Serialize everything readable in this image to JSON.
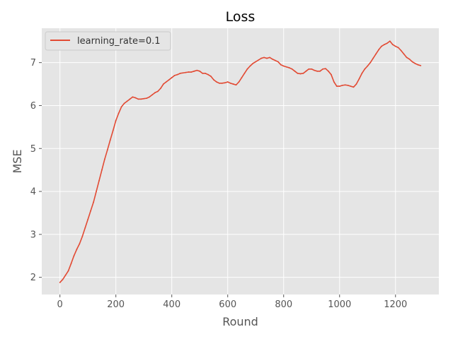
{
  "chart_data": {
    "type": "line",
    "title": "Loss",
    "xlabel": "Round",
    "ylabel": "MSE",
    "xlim": [
      -65,
      1355
    ],
    "ylim": [
      1.6,
      7.8
    ],
    "xticks": [
      0,
      200,
      400,
      600,
      800,
      1000,
      1200
    ],
    "yticks": [
      2,
      3,
      4,
      5,
      6,
      7
    ],
    "grid": true,
    "legend_position": "top-left",
    "series": [
      {
        "name": "learning_rate=0.1",
        "color": "#E24A33",
        "x": [
          0,
          10,
          20,
          30,
          40,
          50,
          60,
          70,
          80,
          90,
          100,
          110,
          120,
          130,
          140,
          150,
          160,
          170,
          180,
          190,
          200,
          210,
          220,
          230,
          240,
          250,
          260,
          270,
          280,
          290,
          300,
          310,
          320,
          330,
          340,
          350,
          360,
          370,
          380,
          390,
          400,
          410,
          420,
          430,
          440,
          450,
          460,
          470,
          480,
          490,
          500,
          510,
          520,
          530,
          540,
          550,
          560,
          570,
          580,
          590,
          600,
          610,
          620,
          630,
          640,
          650,
          660,
          670,
          680,
          690,
          700,
          710,
          720,
          730,
          740,
          750,
          760,
          770,
          780,
          790,
          800,
          810,
          820,
          830,
          840,
          850,
          860,
          870,
          880,
          890,
          900,
          910,
          920,
          930,
          940,
          950,
          960,
          970,
          980,
          990,
          1000,
          1010,
          1020,
          1030,
          1040,
          1050,
          1060,
          1070,
          1080,
          1090,
          1100,
          1110,
          1120,
          1130,
          1140,
          1150,
          1160,
          1170,
          1180,
          1190,
          1200,
          1210,
          1220,
          1230,
          1240,
          1250,
          1260,
          1270,
          1280,
          1290
        ],
        "values": [
          1.88,
          1.95,
          2.05,
          2.15,
          2.32,
          2.5,
          2.65,
          2.78,
          2.95,
          3.15,
          3.35,
          3.55,
          3.75,
          4.0,
          4.25,
          4.5,
          4.75,
          4.97,
          5.2,
          5.42,
          5.65,
          5.82,
          5.97,
          6.05,
          6.1,
          6.15,
          6.2,
          6.18,
          6.15,
          6.15,
          6.16,
          6.17,
          6.2,
          6.25,
          6.3,
          6.33,
          6.4,
          6.5,
          6.55,
          6.6,
          6.65,
          6.7,
          6.72,
          6.75,
          6.76,
          6.77,
          6.78,
          6.78,
          6.8,
          6.82,
          6.8,
          6.75,
          6.75,
          6.72,
          6.68,
          6.6,
          6.55,
          6.52,
          6.52,
          6.53,
          6.55,
          6.52,
          6.5,
          6.48,
          6.55,
          6.65,
          6.75,
          6.85,
          6.92,
          6.98,
          7.02,
          7.06,
          7.1,
          7.12,
          7.1,
          7.12,
          7.08,
          7.05,
          7.02,
          6.95,
          6.92,
          6.9,
          6.88,
          6.85,
          6.8,
          6.75,
          6.74,
          6.75,
          6.8,
          6.85,
          6.85,
          6.82,
          6.8,
          6.8,
          6.85,
          6.86,
          6.8,
          6.72,
          6.55,
          6.45,
          6.45,
          6.47,
          6.48,
          6.47,
          6.45,
          6.43,
          6.5,
          6.62,
          6.75,
          6.85,
          6.92,
          7.0,
          7.1,
          7.2,
          7.3,
          7.38,
          7.42,
          7.45,
          7.5,
          7.42,
          7.38,
          7.35,
          7.28,
          7.2,
          7.12,
          7.08,
          7.02,
          6.98,
          6.95,
          6.93
        ]
      }
    ]
  }
}
